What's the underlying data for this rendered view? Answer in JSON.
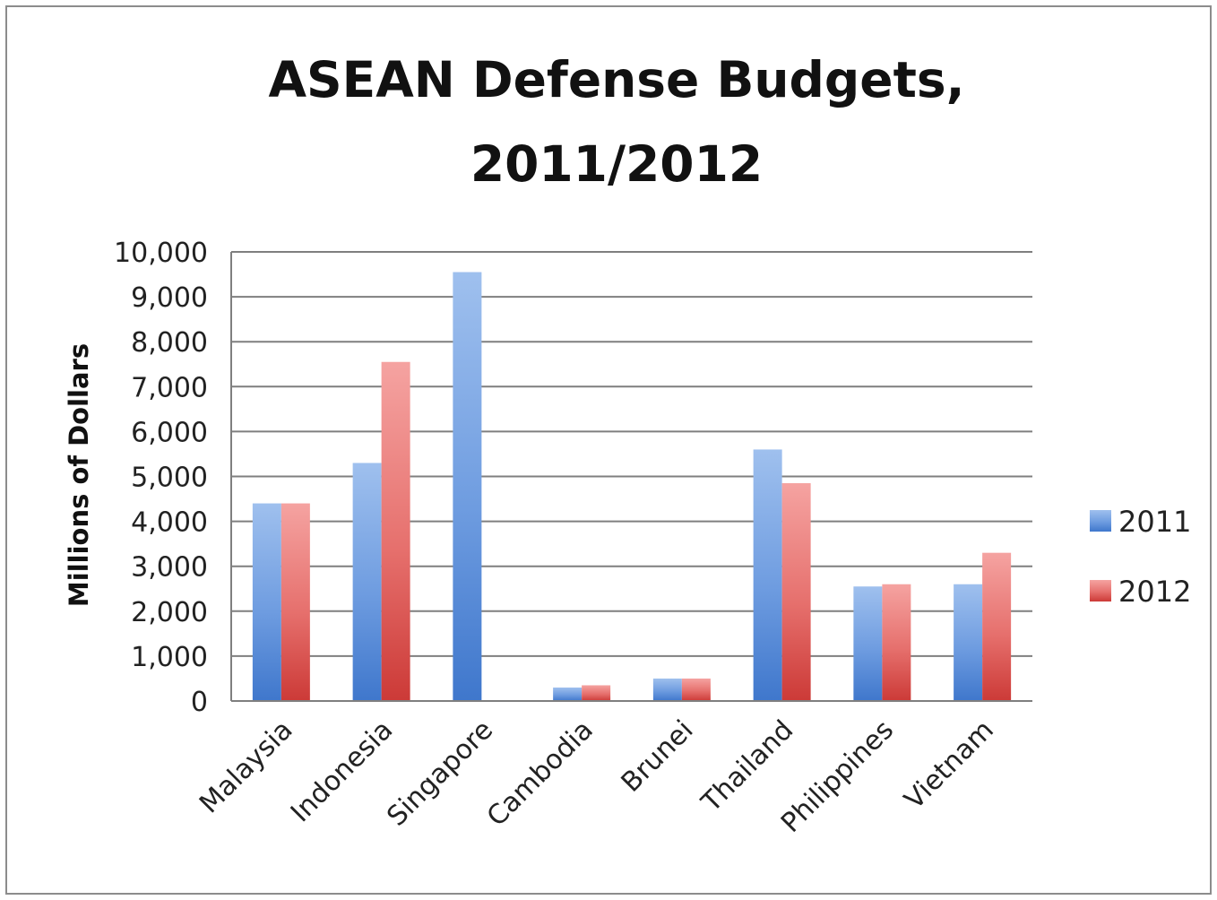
{
  "chart_data": {
    "type": "bar",
    "title_lines": [
      "ASEAN Defense Budgets,",
      "2011/2012"
    ],
    "xlabel": "",
    "ylabel": "Millions of Dollars",
    "ylim": [
      0,
      10000
    ],
    "yticks": [
      "0",
      "1,000",
      "2,000",
      "3,000",
      "4,000",
      "5,000",
      "6,000",
      "7,000",
      "8,000",
      "9,000",
      "10,000"
    ],
    "grid": true,
    "legend_position": "right",
    "categories": [
      "Malaysia",
      "Indonesia",
      "Singapore",
      "Cambodia",
      "Brunei",
      "Thailand",
      "Philippines",
      "Vietnam"
    ],
    "series": [
      {
        "name": "2011",
        "color": "#4f81bd",
        "values": [
          4400,
          5300,
          9550,
          300,
          500,
          5600,
          2550,
          2600
        ]
      },
      {
        "name": "2012",
        "color": "#c0504d",
        "values": [
          4400,
          7550,
          null,
          350,
          500,
          4850,
          2600,
          3300
        ]
      }
    ]
  }
}
